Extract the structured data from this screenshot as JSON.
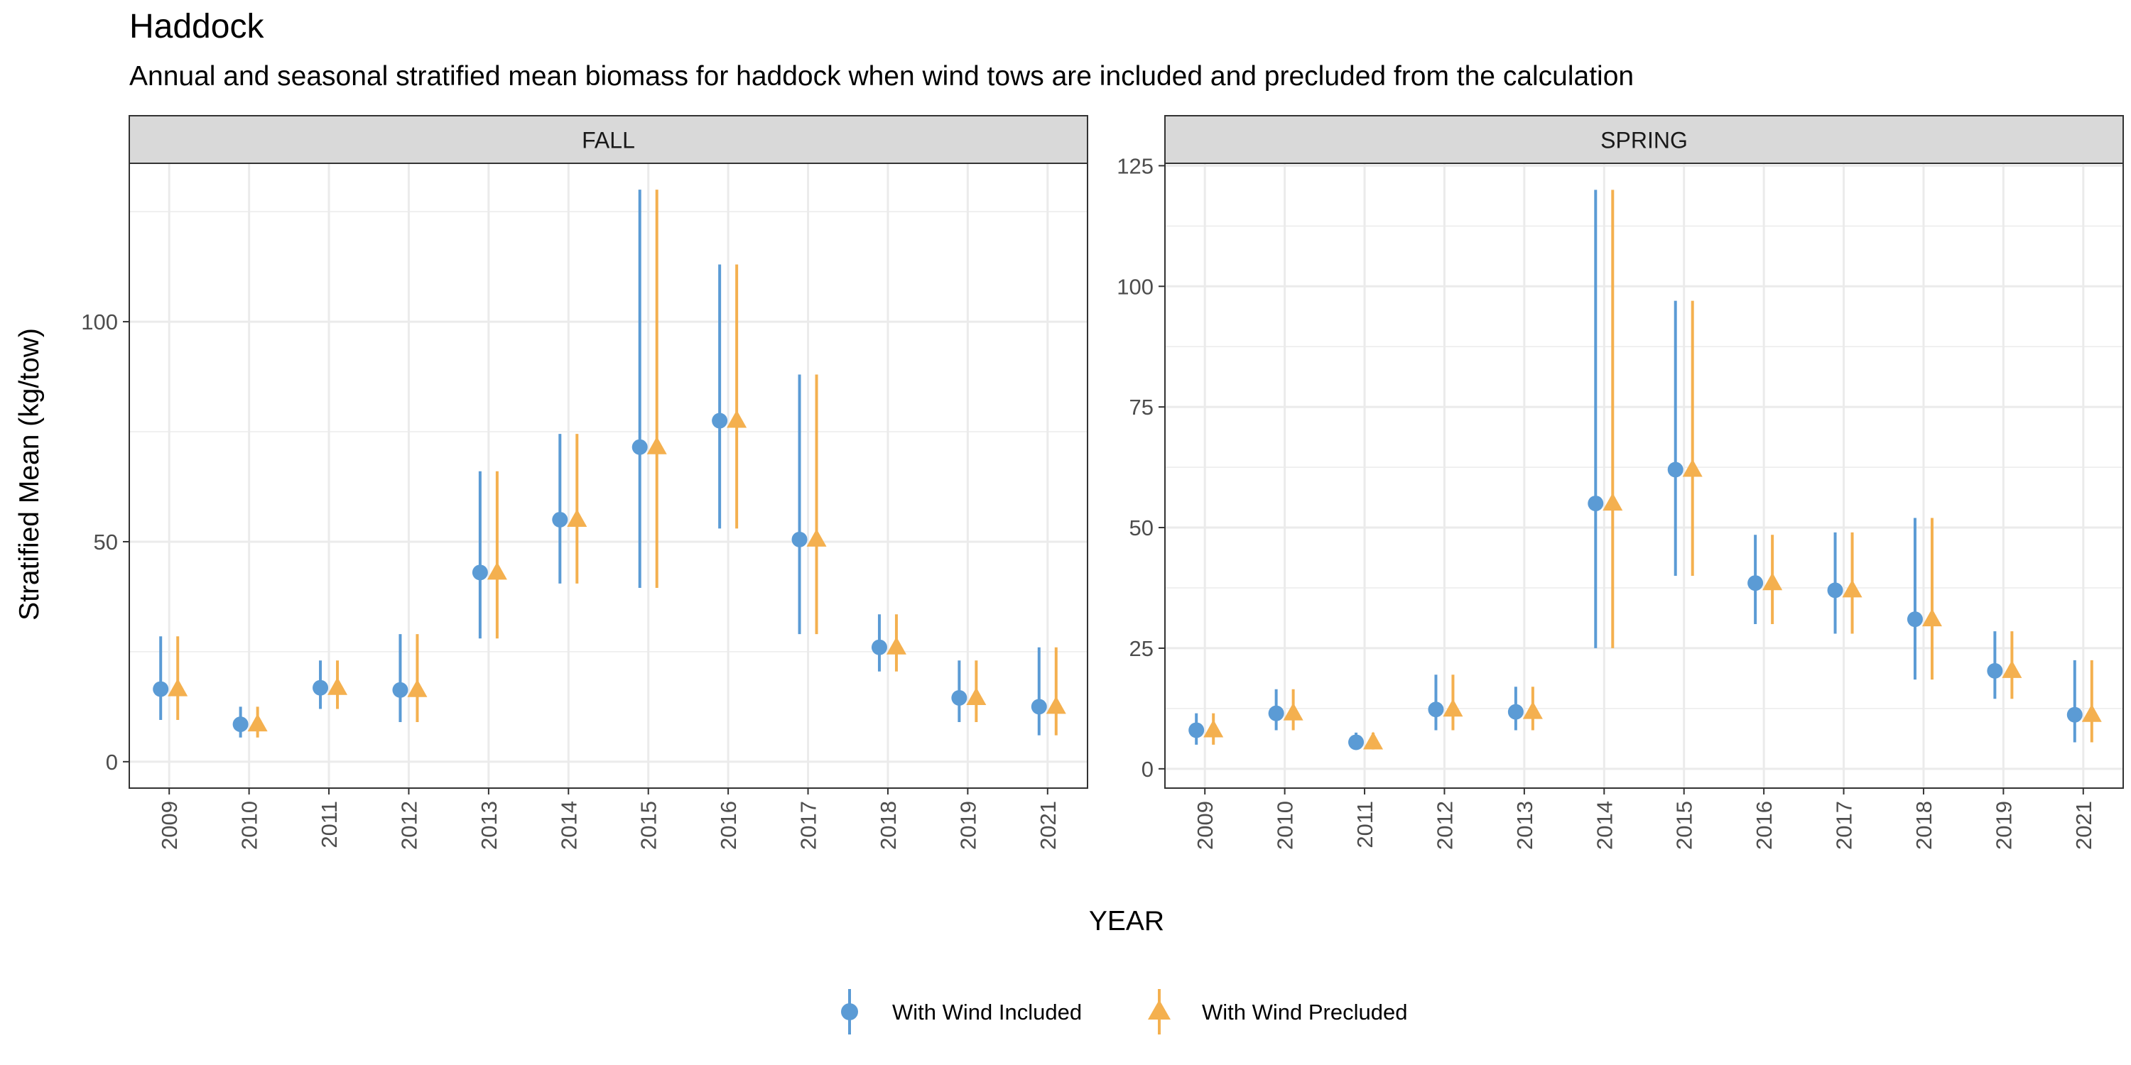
{
  "title": "Haddock",
  "subtitle": "Annual and seasonal stratified mean biomass for haddock when wind tows are included and precluded from the calculation",
  "xlabel": "YEAR",
  "ylabel": "Stratified Mean (kg/tow)",
  "colors": {
    "included": "#5B9BD5",
    "precluded": "#F4B04F",
    "strip_bg": "#D9D9D9",
    "grid": "#EBEBEB",
    "border": "#333333"
  },
  "legend": {
    "position": "bottom",
    "items": [
      {
        "key": "included",
        "label": "With Wind Included",
        "shape": "circle"
      },
      {
        "key": "precluded",
        "label": "With Wind Precluded",
        "shape": "triangle"
      }
    ]
  },
  "chart_data": [
    {
      "type": "scatter",
      "panel": "FALL",
      "categories": [
        "2009",
        "2010",
        "2011",
        "2012",
        "2013",
        "2014",
        "2015",
        "2016",
        "2017",
        "2018",
        "2019",
        "2021"
      ],
      "ylim": [
        -6,
        136
      ],
      "yticks": [
        0,
        50,
        100
      ],
      "grid": true,
      "series": [
        {
          "name": "With Wind Included",
          "key": "included",
          "values": [
            16.5,
            8.5,
            16.8,
            16.3,
            43,
            55,
            71.5,
            77.5,
            50.5,
            26,
            14.5,
            12.5
          ],
          "lower": [
            9.5,
            5.5,
            12,
            9,
            28,
            40.5,
            39.5,
            53,
            29,
            20.5,
            9,
            6
          ],
          "upper": [
            28.5,
            12.5,
            23,
            29,
            66,
            74.5,
            130,
            113,
            88,
            33.5,
            23,
            26
          ]
        },
        {
          "name": "With Wind Precluded",
          "key": "precluded",
          "values": [
            16.5,
            8.5,
            16.8,
            16.3,
            43,
            55,
            71.5,
            77.5,
            50.5,
            26,
            14.5,
            12.5
          ],
          "lower": [
            9.5,
            5.5,
            12,
            9,
            28,
            40.5,
            39.5,
            53,
            29,
            20.5,
            9,
            6
          ],
          "upper": [
            28.5,
            12.5,
            23,
            29,
            66,
            74.5,
            130,
            113,
            88,
            33.5,
            23,
            26
          ]
        }
      ]
    },
    {
      "type": "scatter",
      "panel": "SPRING",
      "categories": [
        "2009",
        "2010",
        "2011",
        "2012",
        "2013",
        "2014",
        "2015",
        "2016",
        "2017",
        "2018",
        "2019",
        "2021"
      ],
      "ylim": [
        -4,
        125.5
      ],
      "yticks": [
        0,
        25,
        50,
        75,
        100,
        125
      ],
      "grid": true,
      "series": [
        {
          "name": "With Wind Included",
          "key": "included",
          "values": [
            8,
            11.5,
            5.5,
            12.3,
            11.8,
            55,
            62,
            38.5,
            37,
            31,
            20.3,
            11.2
          ],
          "lower": [
            5,
            8,
            4,
            8,
            8,
            25,
            40,
            30,
            28,
            18.5,
            14.5,
            5.5
          ],
          "upper": [
            11.5,
            16.5,
            7.5,
            19.5,
            17,
            120,
            97,
            48.5,
            49,
            52,
            28.5,
            22.5
          ]
        },
        {
          "name": "With Wind Precluded",
          "key": "precluded",
          "values": [
            8,
            11.5,
            5.5,
            12.3,
            11.8,
            55,
            62,
            38.5,
            37,
            31,
            20.3,
            11.2
          ],
          "lower": [
            5,
            8,
            4,
            8,
            8,
            25,
            40,
            30,
            28,
            18.5,
            14.5,
            5.5
          ],
          "upper": [
            11.5,
            16.5,
            7.5,
            19.5,
            17,
            120,
            97,
            48.5,
            49,
            52,
            28.5,
            22.5
          ]
        }
      ]
    }
  ]
}
